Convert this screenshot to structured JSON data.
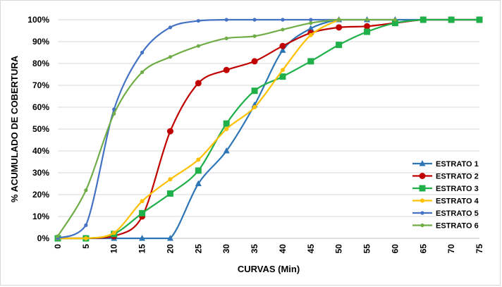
{
  "chart_data": {
    "type": "line",
    "xlabel": "CURVAS (Min)",
    "ylabel": "% ACUMULADO  DE COBERTURA",
    "xlim": [
      0,
      75
    ],
    "ylim": [
      0,
      100
    ],
    "x_ticks": [
      "0",
      "5",
      "10",
      "15",
      "20",
      "25",
      "30",
      "35",
      "40",
      "45",
      "50",
      "55",
      "60",
      "65",
      "70",
      "75"
    ],
    "y_ticks": [
      "0%",
      "10%",
      "20%",
      "30%",
      "40%",
      "50%",
      "60%",
      "70%",
      "80%",
      "90%",
      "100%"
    ],
    "grid": "horizontal",
    "legend_position": "bottom-right",
    "series": [
      {
        "name": "ESTRATO 1",
        "color": "#2e75b6",
        "marker": "triangle",
        "x": [
          0,
          5,
          10,
          15,
          20,
          25,
          30,
          35,
          40,
          45,
          50,
          55,
          60,
          65,
          70,
          75
        ],
        "y": [
          0,
          0,
          0,
          0,
          0,
          25,
          40,
          61,
          86,
          96,
          100,
          100,
          100,
          100,
          100,
          100
        ]
      },
      {
        "name": "ESTRATO 2",
        "color": "#c00000",
        "marker": "circle",
        "x": [
          0,
          5,
          10,
          15,
          20,
          25,
          30,
          35,
          40,
          45,
          50,
          55,
          60,
          65,
          70,
          75
        ],
        "y": [
          0,
          0,
          1,
          10,
          49,
          71,
          77,
          81,
          88,
          94,
          96.5,
          97,
          98.5,
          100,
          100,
          100
        ]
      },
      {
        "name": "ESTRATO 3",
        "color": "#20b04a",
        "marker": "square",
        "x": [
          0,
          5,
          10,
          15,
          20,
          25,
          30,
          35,
          40,
          45,
          50,
          55,
          60,
          65,
          70,
          75
        ],
        "y": [
          0,
          0,
          2,
          11.5,
          20.5,
          31,
          52.5,
          67.5,
          74,
          81,
          88.5,
          94.5,
          98.5,
          100,
          100,
          100
        ]
      },
      {
        "name": "ESTRATO 4",
        "color": "#ffc000",
        "marker": "diamond",
        "x": [
          0,
          5,
          10,
          15,
          20,
          25,
          30,
          35,
          40,
          45,
          50
        ],
        "y": [
          0,
          0,
          2.5,
          17,
          27,
          36,
          50,
          60,
          77,
          93,
          100
        ]
      },
      {
        "name": "ESTRATO 5",
        "color": "#4472c4",
        "marker": "dot",
        "x": [
          0,
          5,
          10,
          15,
          20,
          25,
          30,
          35,
          40,
          45,
          50
        ],
        "y": [
          0,
          6,
          59,
          85,
          96.5,
          99.5,
          100,
          100,
          100,
          100,
          100
        ]
      },
      {
        "name": "ESTRATO 6",
        "color": "#70ad47",
        "marker": "dot",
        "x": [
          0,
          5,
          10,
          15,
          20,
          25,
          30,
          35,
          40,
          45,
          50,
          55,
          60
        ],
        "y": [
          1,
          22,
          57,
          76,
          83,
          88,
          91.5,
          92.5,
          95.5,
          98.5,
          100,
          100,
          100
        ]
      }
    ]
  }
}
